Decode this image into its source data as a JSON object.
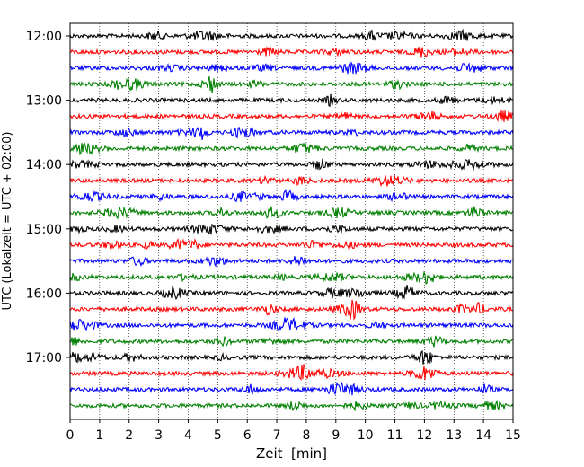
{
  "chart_data": {
    "type": "line",
    "title": "",
    "xlabel": "Zeit  [min]",
    "ylabel": "UTC (Lokalzeit = UTC + 02:00)",
    "xlim": [
      0,
      15
    ],
    "x_ticks": [
      0,
      1,
      2,
      3,
      4,
      5,
      6,
      7,
      8,
      9,
      10,
      11,
      12,
      13,
      14,
      15
    ],
    "y_tick_labels": [
      "12:00",
      "13:00",
      "14:00",
      "15:00",
      "16:00",
      "17:00"
    ],
    "trace_interval_minutes": 15,
    "grid": "vertical dotted at each minute",
    "legend": "none",
    "trace_colors": [
      "#000000",
      "#ff0000",
      "#0000ff",
      "#008000"
    ],
    "traces": [
      {
        "start": "12:00",
        "color": "#000000"
      },
      {
        "start": "12:15",
        "color": "#ff0000"
      },
      {
        "start": "12:30",
        "color": "#0000ff"
      },
      {
        "start": "12:45",
        "color": "#008000"
      },
      {
        "start": "13:00",
        "color": "#000000"
      },
      {
        "start": "13:15",
        "color": "#ff0000"
      },
      {
        "start": "13:30",
        "color": "#0000ff"
      },
      {
        "start": "13:45",
        "color": "#008000"
      },
      {
        "start": "14:00",
        "color": "#000000"
      },
      {
        "start": "14:15",
        "color": "#ff0000"
      },
      {
        "start": "14:30",
        "color": "#0000ff"
      },
      {
        "start": "14:45",
        "color": "#008000"
      },
      {
        "start": "15:00",
        "color": "#000000"
      },
      {
        "start": "15:15",
        "color": "#ff0000"
      },
      {
        "start": "15:30",
        "color": "#0000ff"
      },
      {
        "start": "15:45",
        "color": "#008000"
      },
      {
        "start": "16:00",
        "color": "#000000"
      },
      {
        "start": "16:15",
        "color": "#ff0000"
      },
      {
        "start": "16:30",
        "color": "#0000ff"
      },
      {
        "start": "16:45",
        "color": "#008000"
      },
      {
        "start": "17:00",
        "color": "#000000"
      },
      {
        "start": "17:15",
        "color": "#ff0000"
      },
      {
        "start": "17:30",
        "color": "#0000ff"
      },
      {
        "start": "17:45",
        "color": "#008000"
      }
    ]
  }
}
